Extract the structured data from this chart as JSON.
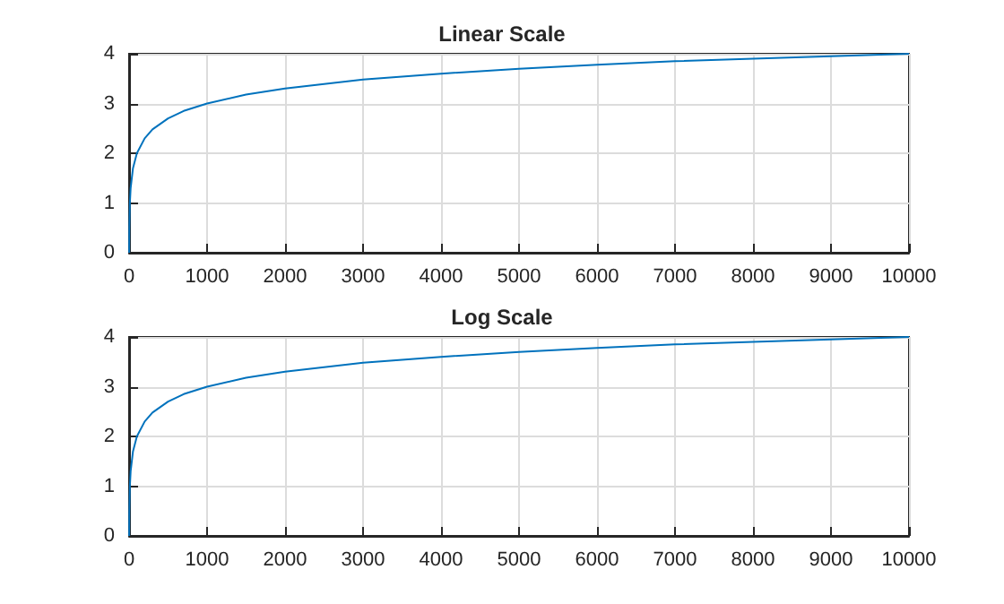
{
  "chart_data": [
    {
      "type": "line",
      "title": "Linear Scale",
      "x": [
        1,
        3,
        10,
        20,
        50,
        100,
        200,
        300,
        500,
        700,
        1000,
        1500,
        2000,
        3000,
        4000,
        5000,
        6000,
        7000,
        8000,
        9000,
        10000
      ],
      "series": [
        {
          "color": "#0072bd",
          "values": [
            0,
            0.48,
            1,
            1.3,
            1.7,
            2,
            2.3,
            2.48,
            2.7,
            2.85,
            3,
            3.18,
            3.3,
            3.48,
            3.6,
            3.7,
            3.78,
            3.85,
            3.9,
            3.95,
            4
          ]
        }
      ],
      "xlim": [
        0,
        10000
      ],
      "xticks": [
        0,
        1000,
        2000,
        3000,
        4000,
        5000,
        6000,
        7000,
        8000,
        9000,
        10000
      ],
      "ylim": [
        0,
        4
      ],
      "yticks": [
        0,
        1,
        2,
        3,
        4
      ],
      "grid": true,
      "marker": "none",
      "line_style": "solid"
    },
    {
      "type": "line",
      "title": "Log Scale",
      "x": [
        1,
        3,
        10,
        20,
        50,
        100,
        200,
        300,
        500,
        700,
        1000,
        1500,
        2000,
        3000,
        4000,
        5000,
        6000,
        7000,
        8000,
        9000,
        10000
      ],
      "series": [
        {
          "color": "#0072bd",
          "values": [
            0,
            0.48,
            1,
            1.3,
            1.7,
            2,
            2.3,
            2.48,
            2.7,
            2.85,
            3,
            3.18,
            3.3,
            3.48,
            3.6,
            3.7,
            3.78,
            3.85,
            3.9,
            3.95,
            4
          ]
        }
      ],
      "xlim": [
        0,
        10000
      ],
      "xticks": [
        0,
        1000,
        2000,
        3000,
        4000,
        5000,
        6000,
        7000,
        8000,
        9000,
        10000
      ],
      "ylim": [
        0,
        4
      ],
      "yticks": [
        0,
        1,
        2,
        3,
        4
      ],
      "grid": true,
      "marker": "none",
      "line_style": "solid"
    }
  ]
}
